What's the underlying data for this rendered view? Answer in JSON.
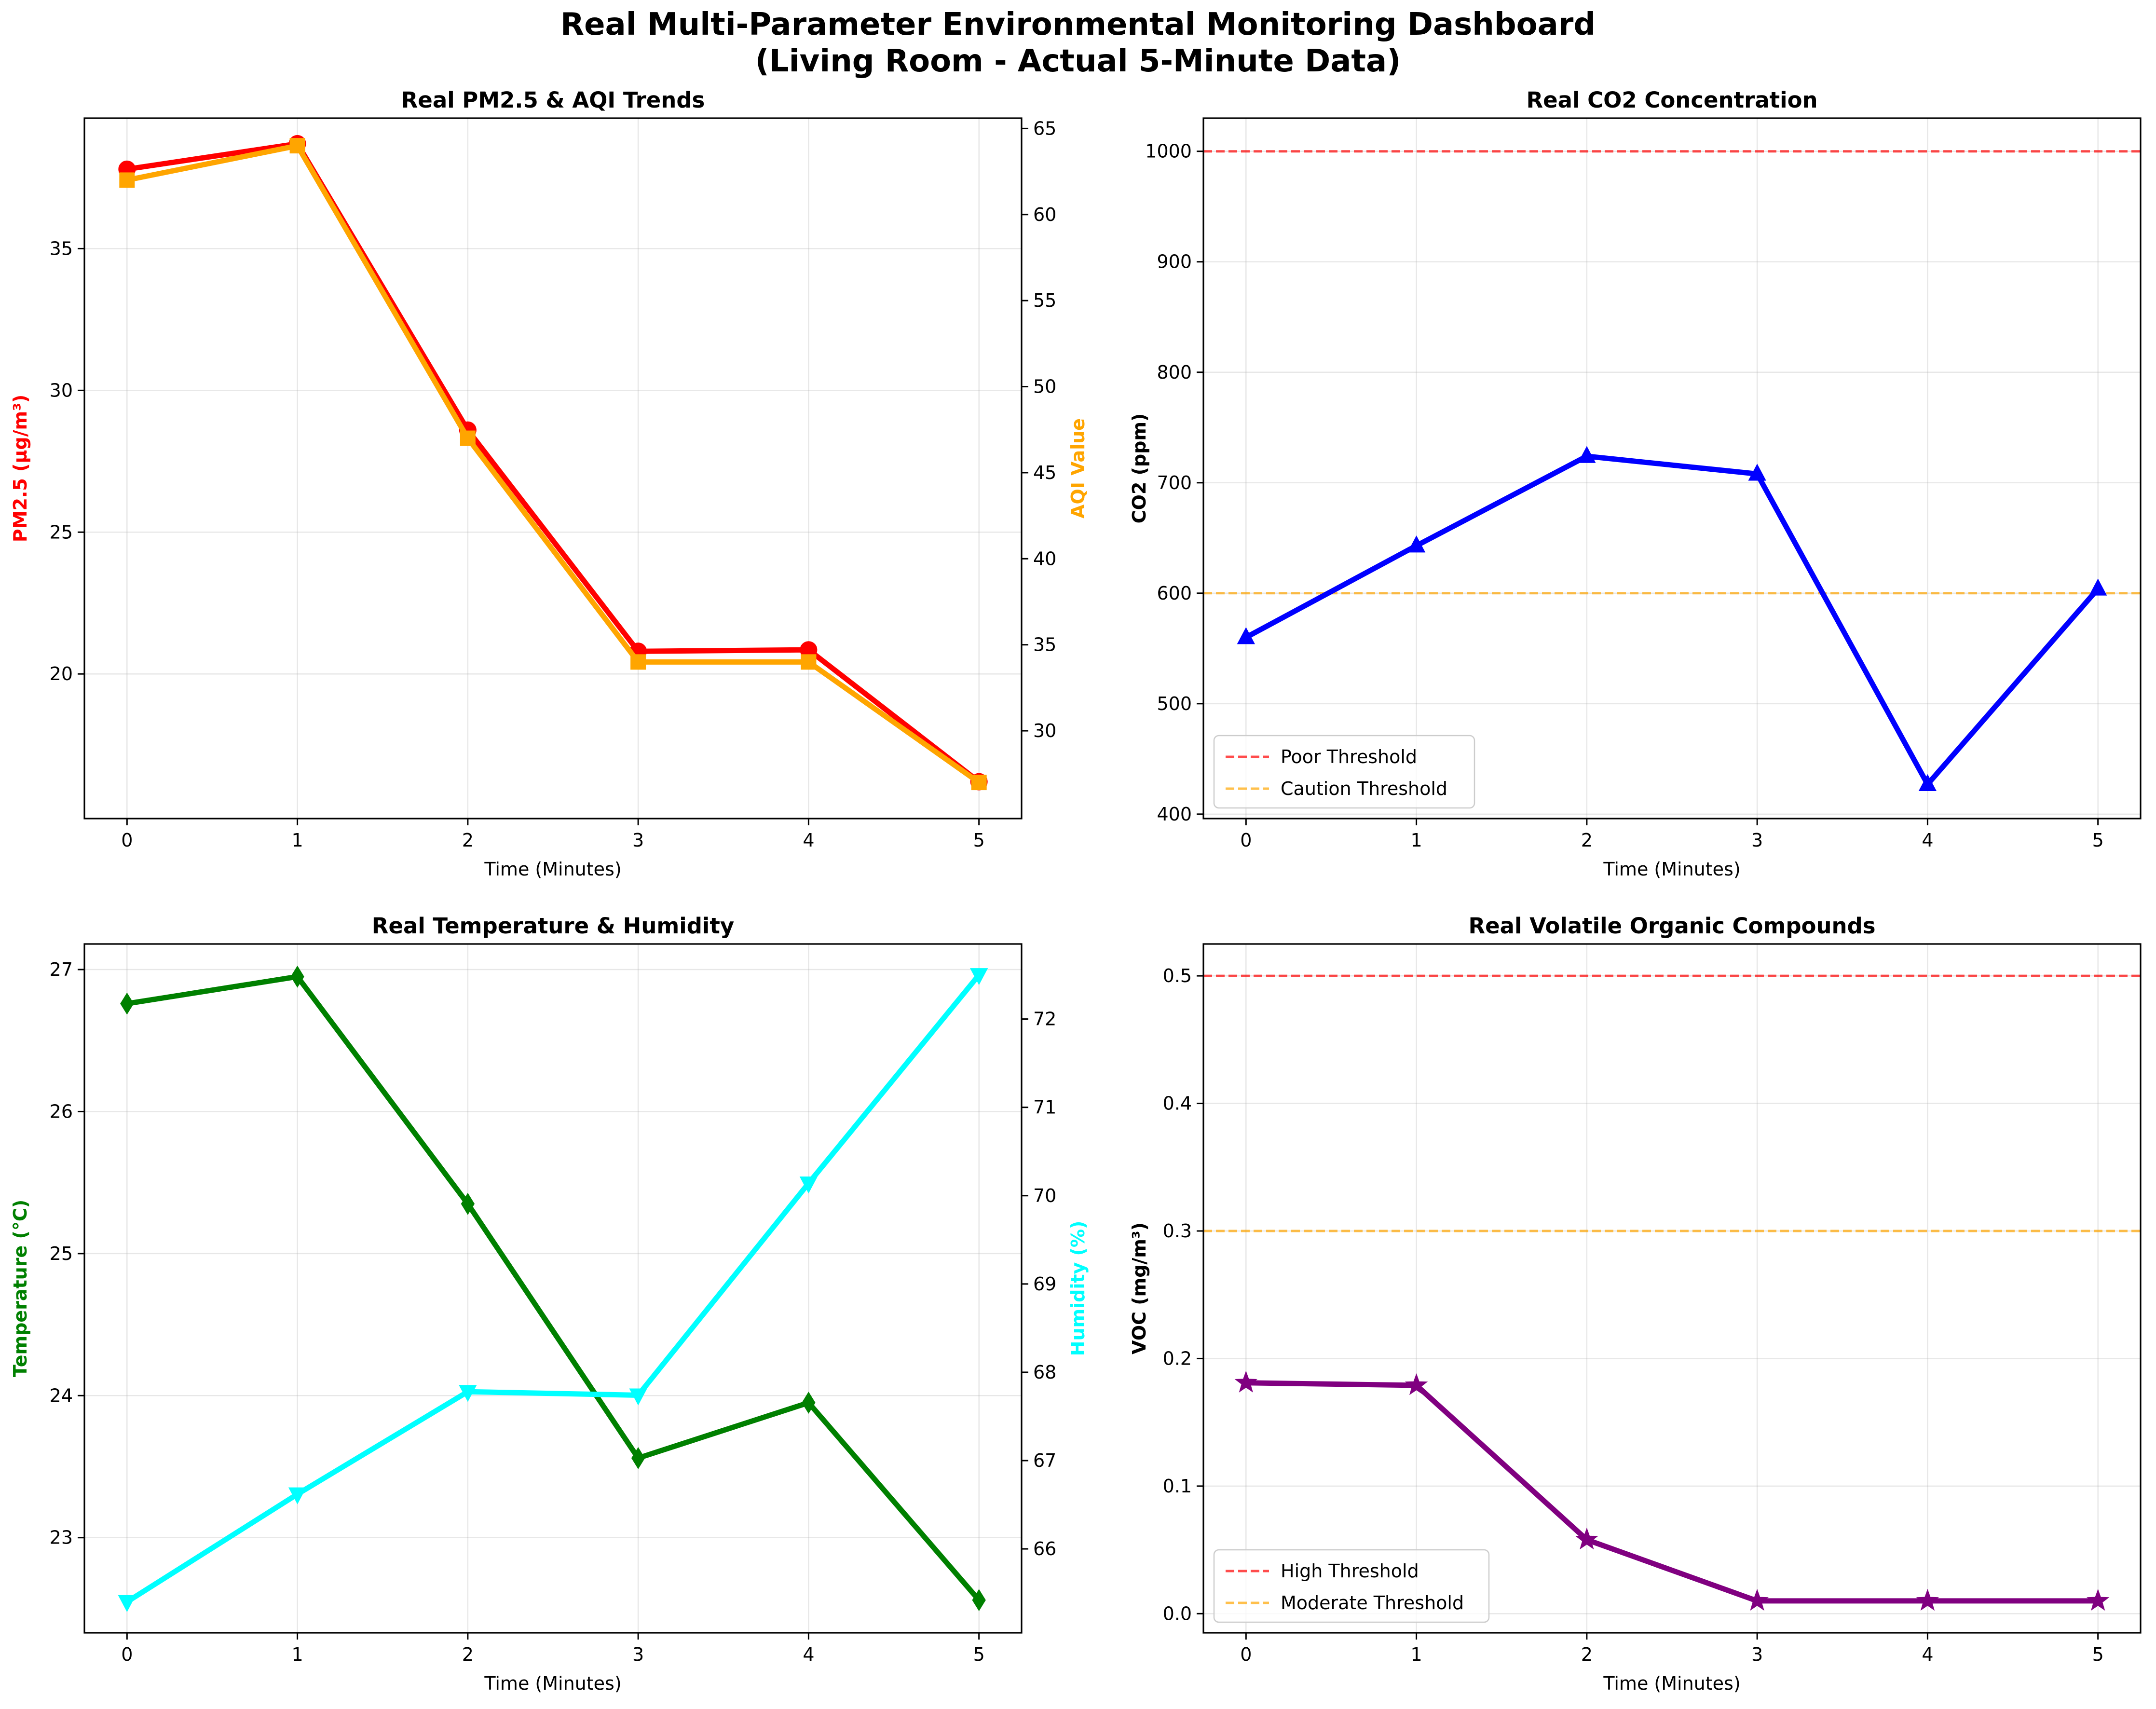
{
  "figure": {
    "title_line1": "Real Multi-Parameter Environmental Monitoring Dashboard",
    "title_line2": "(Living Room - Actual 5-Minute Data)"
  },
  "chart_data": [
    {
      "id": "pm25",
      "type": "line",
      "title": "Real PM2.5 & AQI Trends",
      "xlabel": "Time (Minutes)",
      "ylabel": "PM2.5 (μg/m³)",
      "ylabel_right": "AQI Value",
      "x": [
        0,
        1,
        2,
        3,
        4,
        5
      ],
      "xlim": [
        -0.25,
        5.25
      ],
      "xticks": [
        0,
        1,
        2,
        3,
        4,
        5
      ],
      "ylim": [
        14.9,
        39.6
      ],
      "yticks": [
        20,
        25,
        30,
        35
      ],
      "ylim_right": [
        24.9,
        65.6
      ],
      "yticks_right": [
        30,
        35,
        40,
        45,
        50,
        55,
        60,
        65
      ],
      "grid": true,
      "series": [
        {
          "axis": "left",
          "color": "#ff0000",
          "marker": "circle",
          "values": [
            37.8,
            38.7,
            28.6,
            20.8,
            20.85,
            16.2
          ]
        },
        {
          "axis": "right",
          "color": "#ffa500",
          "marker": "square",
          "values": [
            62,
            64,
            47,
            34,
            34,
            27
          ]
        }
      ]
    },
    {
      "id": "co2",
      "type": "line",
      "title": "Real CO2 Concentration",
      "xlabel": "Time (Minutes)",
      "ylabel": "CO2 (ppm)",
      "x": [
        0,
        1,
        2,
        3,
        4,
        5
      ],
      "xlim": [
        -0.25,
        5.25
      ],
      "xticks": [
        0,
        1,
        2,
        3,
        4,
        5
      ],
      "ylim": [
        396,
        1030
      ],
      "yticks": [
        400,
        500,
        600,
        700,
        800,
        900,
        1000
      ],
      "grid": true,
      "legend": "lower-left",
      "series": [
        {
          "axis": "left",
          "color": "#0000ff",
          "marker": "triangle-up",
          "values": [
            560,
            643,
            724,
            708,
            427,
            604
          ]
        }
      ],
      "thresholds": [
        {
          "name": "Poor Threshold",
          "value": 1000,
          "color": "#ff0000"
        },
        {
          "name": "Caution Threshold",
          "value": 600,
          "color": "#ffa500"
        }
      ]
    },
    {
      "id": "temp",
      "type": "line",
      "title": "Real Temperature & Humidity",
      "xlabel": "Time (Minutes)",
      "ylabel": "Temperature (°C)",
      "ylabel_right": "Humidity (%)",
      "x": [
        0,
        1,
        2,
        3,
        4,
        5
      ],
      "xlim": [
        -0.25,
        5.25
      ],
      "xticks": [
        0,
        1,
        2,
        3,
        4,
        5
      ],
      "ylim": [
        22.33,
        27.18
      ],
      "yticks": [
        23,
        24,
        25,
        26,
        27
      ],
      "ylim_right": [
        65.05,
        72.85
      ],
      "yticks_right": [
        66,
        67,
        68,
        69,
        70,
        71,
        72
      ],
      "grid": true,
      "series": [
        {
          "axis": "left",
          "color": "#008000",
          "marker": "diamond",
          "values": [
            26.76,
            26.95,
            25.35,
            23.56,
            23.95,
            22.56
          ]
        },
        {
          "axis": "right",
          "color": "#00ffff",
          "marker": "triangle-down",
          "values": [
            65.4,
            66.62,
            67.78,
            67.74,
            70.14,
            72.5
          ]
        }
      ]
    },
    {
      "id": "voc",
      "type": "line",
      "title": "Real Volatile Organic Compounds",
      "xlabel": "Time (Minutes)",
      "ylabel": "VOC (mg/m³)",
      "x": [
        0,
        1,
        2,
        3,
        4,
        5
      ],
      "xlim": [
        -0.25,
        5.25
      ],
      "xticks": [
        0,
        1,
        2,
        3,
        4,
        5
      ],
      "ylim": [
        -0.015,
        0.525
      ],
      "yticks": [
        0.0,
        0.1,
        0.2,
        0.3,
        0.4,
        0.5
      ],
      "ytick_decimals": 1,
      "grid": true,
      "legend": "lower-left",
      "series": [
        {
          "axis": "left",
          "color": "#800080",
          "marker": "star",
          "values": [
            0.181,
            0.179,
            0.058,
            0.01,
            0.01,
            0.01
          ]
        }
      ],
      "thresholds": [
        {
          "name": "High Threshold",
          "value": 0.5,
          "color": "#ff0000"
        },
        {
          "name": "Moderate Threshold",
          "value": 0.3,
          "color": "#ffa500"
        }
      ]
    }
  ]
}
